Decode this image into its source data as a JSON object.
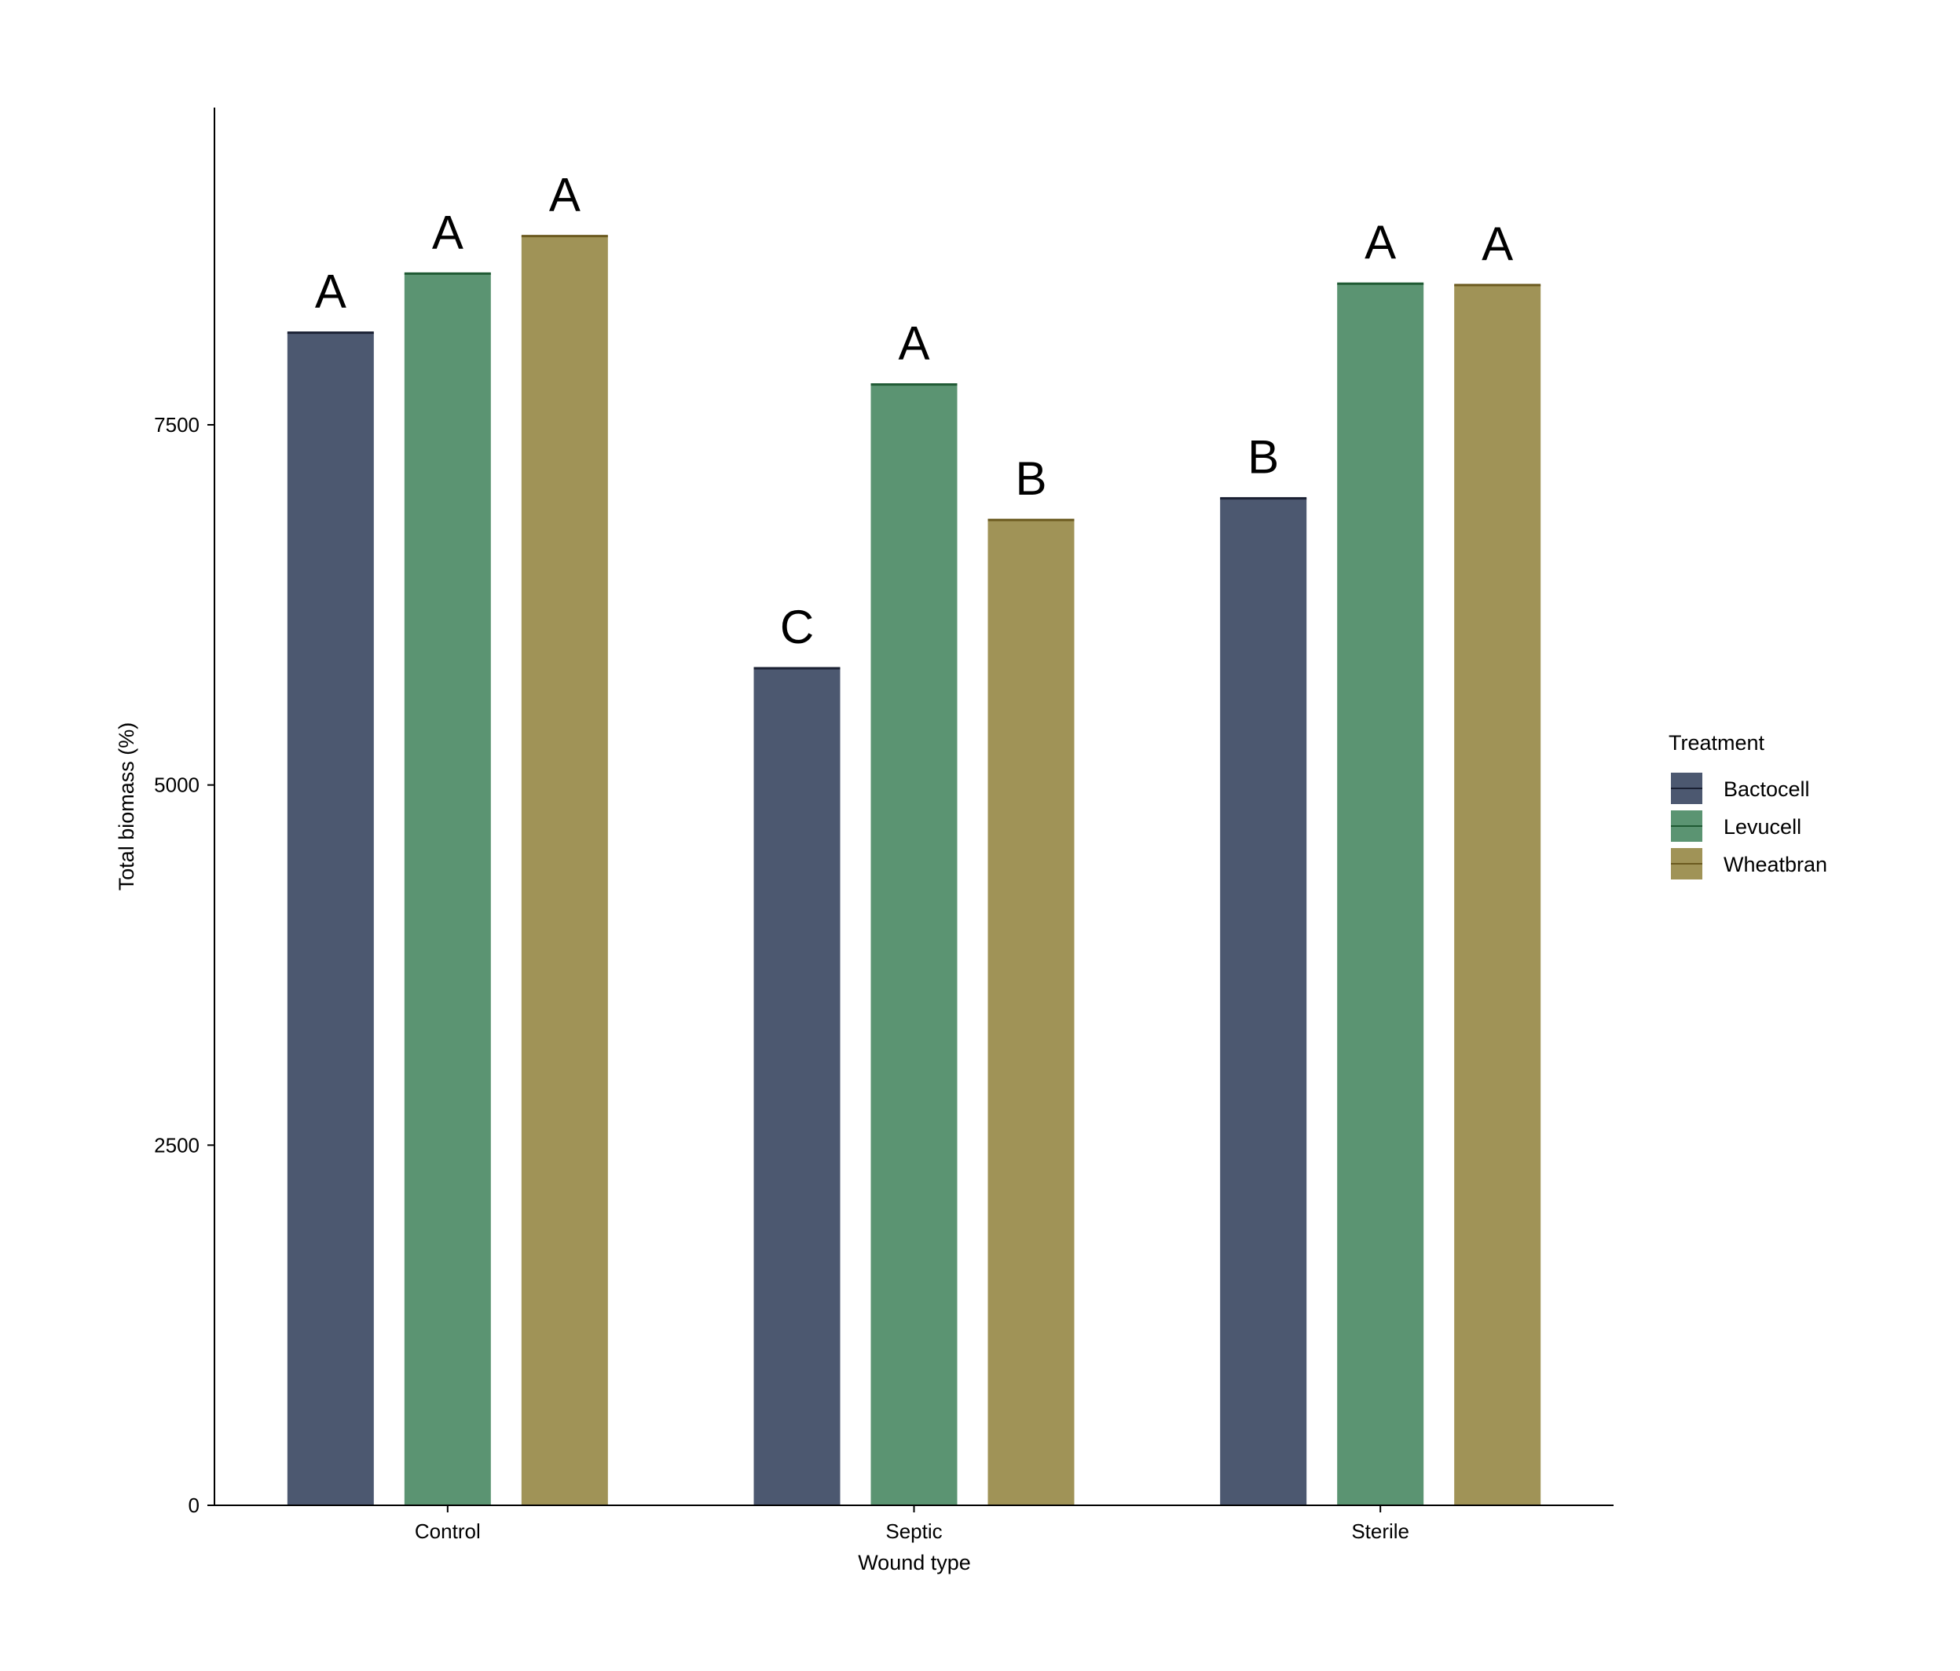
{
  "chart_data": {
    "type": "bar",
    "title": "",
    "xlabel": "Wound type",
    "ylabel": "Total biomass (%)",
    "ylim": [
      0,
      9700
    ],
    "yticks": [
      "0",
      "2500",
      "5000",
      "7500"
    ],
    "ytick_values": [
      0,
      2500,
      5000,
      7500
    ],
    "categories": [
      "Control",
      "Septic",
      "Sterile"
    ],
    "series": [
      {
        "name": "Bactocell",
        "color": "#4c5870",
        "edge": "#1a2033",
        "values": [
          8140,
          5810,
          6990
        ],
        "letters": [
          "A",
          "C",
          "B"
        ]
      },
      {
        "name": "Levucell",
        "color": "#5b9472",
        "edge": "#1f5a33",
        "values": [
          8550,
          7780,
          8480
        ],
        "letters": [
          "A",
          "A",
          "A"
        ]
      },
      {
        "name": "Wheatbran",
        "color": "#a09357",
        "edge": "#6b5a1f",
        "values": [
          8810,
          6840,
          8470
        ],
        "letters": [
          "A",
          "B",
          "A"
        ]
      }
    ],
    "legend": {
      "title": "Treatment",
      "placement": "right"
    },
    "grid": false
  }
}
